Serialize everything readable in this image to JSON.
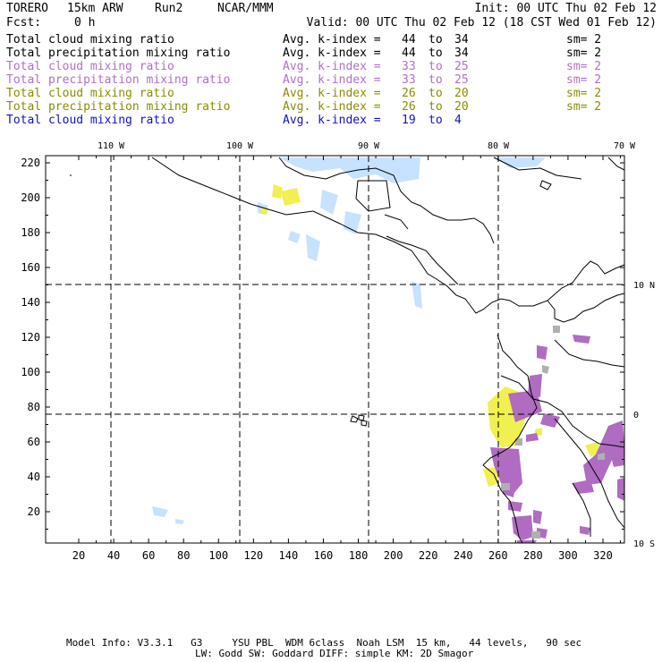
{
  "header": {
    "model": "TORERO",
    "resolution": "15km ARW",
    "run": "Run2",
    "org": "NCAR/MMM",
    "init": "Init: 00 UTC Thu 02 Feb 12",
    "fcst_label": "Fcst:",
    "fcst_value": "0 h",
    "valid": "Valid: 00 UTC Thu 02 Feb 12 (18 CST Wed 01 Feb 12)"
  },
  "legend": [
    {
      "field": "Total cloud mixing ratio",
      "index_label": "Avg. k-index =",
      "from": "44",
      "to_word": "to",
      "to": "34",
      "sm": "sm= 2",
      "color": "#000000"
    },
    {
      "field": "Total precipitation mixing ratio",
      "index_label": "Avg. k-index =",
      "from": "44",
      "to_word": "to",
      "to": "34",
      "sm": "sm= 2",
      "color": "#000000"
    },
    {
      "field": "Total cloud mixing ratio",
      "index_label": "Avg. k-index =",
      "from": "33",
      "to_word": "to",
      "to": "25",
      "sm": "sm= 2",
      "color": "#b070c8"
    },
    {
      "field": "Total precipitation mixing ratio",
      "index_label": "Avg. k-index =",
      "from": "33",
      "to_word": "to",
      "to": "25",
      "sm": "sm= 2",
      "color": "#b070c8"
    },
    {
      "field": "Total cloud mixing ratio",
      "index_label": "Avg. k-index =",
      "from": "26",
      "to_word": "to",
      "to": "20",
      "sm": "sm= 2",
      "color": "#8c8c00"
    },
    {
      "field": "Total precipitation mixing ratio",
      "index_label": "Avg. k-index =",
      "from": "26",
      "to_word": "to",
      "to": "20",
      "sm": "sm= 2",
      "color": "#8c8c00"
    },
    {
      "field": "Total cloud mixing ratio",
      "index_label": "Avg. k-index =",
      "from": "19",
      "to_word": "to",
      "to": "4",
      "sm": "",
      "color": "#1010d0"
    }
  ],
  "map": {
    "lon_labels": [
      "110 W",
      "100 W",
      "90 W",
      "80 W",
      "70 W"
    ],
    "lat_labels": [
      "10 N",
      "0",
      "10 S"
    ],
    "x_ticks": [
      "20",
      "40",
      "60",
      "80",
      "100",
      "120",
      "140",
      "160",
      "180",
      "200",
      "220",
      "240",
      "260",
      "280",
      "300",
      "320"
    ],
    "y_ticks": [
      "20",
      "40",
      "60",
      "80",
      "100",
      "120",
      "140",
      "160",
      "180",
      "200",
      "220"
    ],
    "colors": {
      "cloud_light_blue": "#c6e2ff",
      "yellow": "#f0f050",
      "purple": "#b06cc0",
      "gray": "#b0b0b0",
      "frame": "#000000"
    }
  },
  "footer": {
    "line1": "Model Info: V3.3.1   G3     YSU PBL  WDM 6class  Noah LSM  15 km,   44 levels,   90 sec",
    "line2": "LW: Godd SW: Goddard DIFF: simple KM: 2D Smagor"
  }
}
